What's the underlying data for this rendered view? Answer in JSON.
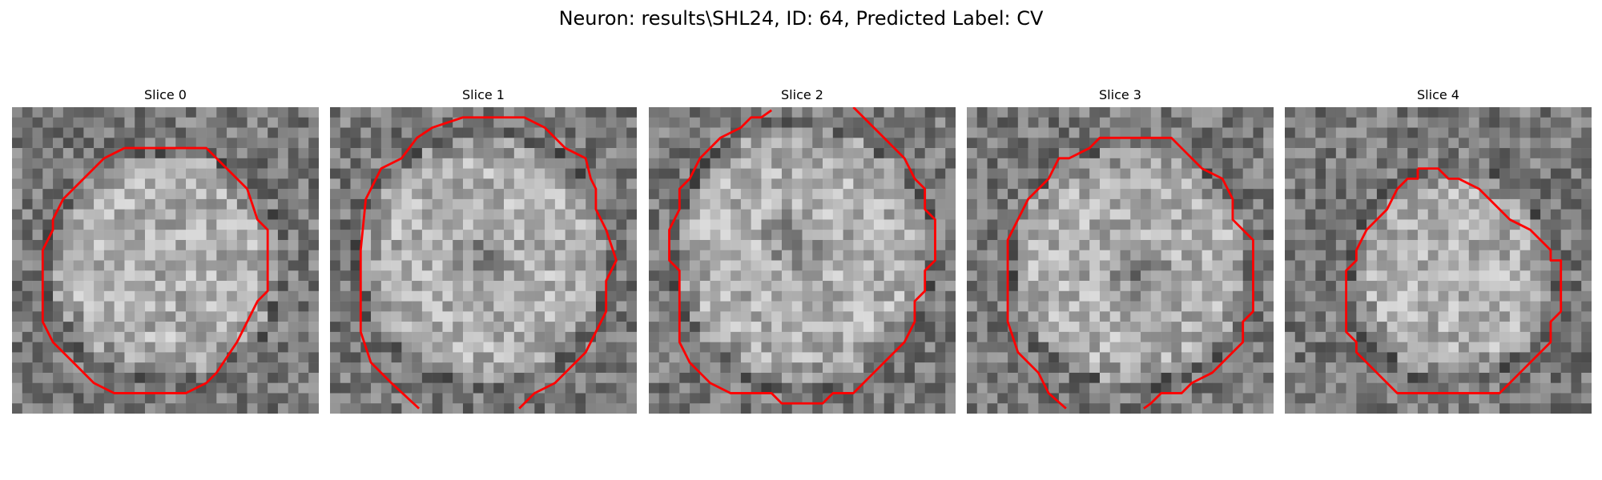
{
  "figure": {
    "title": "Neuron: results\\SHL24, ID: 64, Predicted Label: CV"
  },
  "contour_color": "#ff0000",
  "slices": [
    {
      "title": "Slice 0"
    },
    {
      "title": "Slice 1"
    },
    {
      "title": "Slice 2"
    },
    {
      "title": "Slice 3"
    },
    {
      "title": "Slice 4"
    }
  ]
}
